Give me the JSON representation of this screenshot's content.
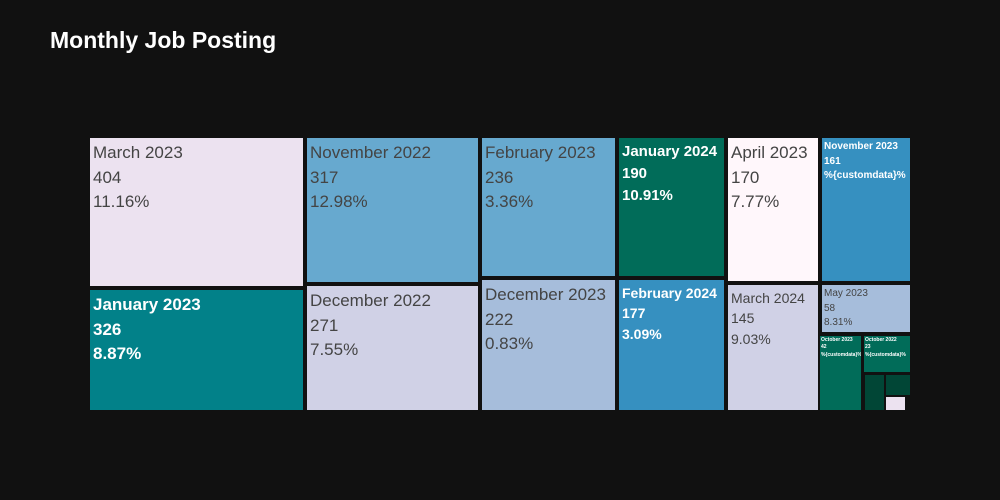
{
  "title": "Monthly Job Posting",
  "chart_data": {
    "type": "treemap",
    "title": "Monthly Job Posting",
    "items": [
      {
        "label": "March 2023",
        "value": 404,
        "pct": "11.16%",
        "color": "#ece2f0"
      },
      {
        "label": "January 2023",
        "value": 326,
        "pct": "8.87%",
        "color": "#028189"
      },
      {
        "label": "November 2022",
        "value": 317,
        "pct": "12.98%",
        "color": "#67a9cf"
      },
      {
        "label": "December 2022",
        "value": 271,
        "pct": "7.55%",
        "color": "#d0d1e6"
      },
      {
        "label": "February 2023",
        "value": 236,
        "pct": "3.36%",
        "color": "#67a9cf"
      },
      {
        "label": "December 2023",
        "value": 222,
        "pct": "0.83%",
        "color": "#a6bddb"
      },
      {
        "label": "January 2024",
        "value": 190,
        "pct": "10.91%",
        "color": "#016c59"
      },
      {
        "label": "February 2024",
        "value": 177,
        "pct": "3.09%",
        "color": "#3690c0"
      },
      {
        "label": "April 2023",
        "value": 170,
        "pct": "7.77%",
        "color": "#fff7fb"
      },
      {
        "label": "March 2024",
        "value": 145,
        "pct": "9.03%",
        "color": "#d0d1e6"
      },
      {
        "label": "November 2023",
        "value": 161,
        "pct": "%{customdata}%",
        "color": "#3690c0"
      },
      {
        "label": "May 2023",
        "value": 58,
        "pct": "8.31%",
        "color": "#a6bddb"
      },
      {
        "label": "October 2023",
        "value": 42,
        "pct": "%{customdata}%",
        "color": "#016c59"
      },
      {
        "label": "October 2022",
        "value": 23,
        "pct": "%{customdata}%",
        "color": "#016c59"
      },
      {
        "label": "",
        "value": 8,
        "pct": "",
        "color": "#014636"
      },
      {
        "label": "",
        "value": 10,
        "pct": "",
        "color": "#014636"
      },
      {
        "label": "",
        "value": 2,
        "pct": "",
        "color": "#ece2f0"
      }
    ]
  }
}
